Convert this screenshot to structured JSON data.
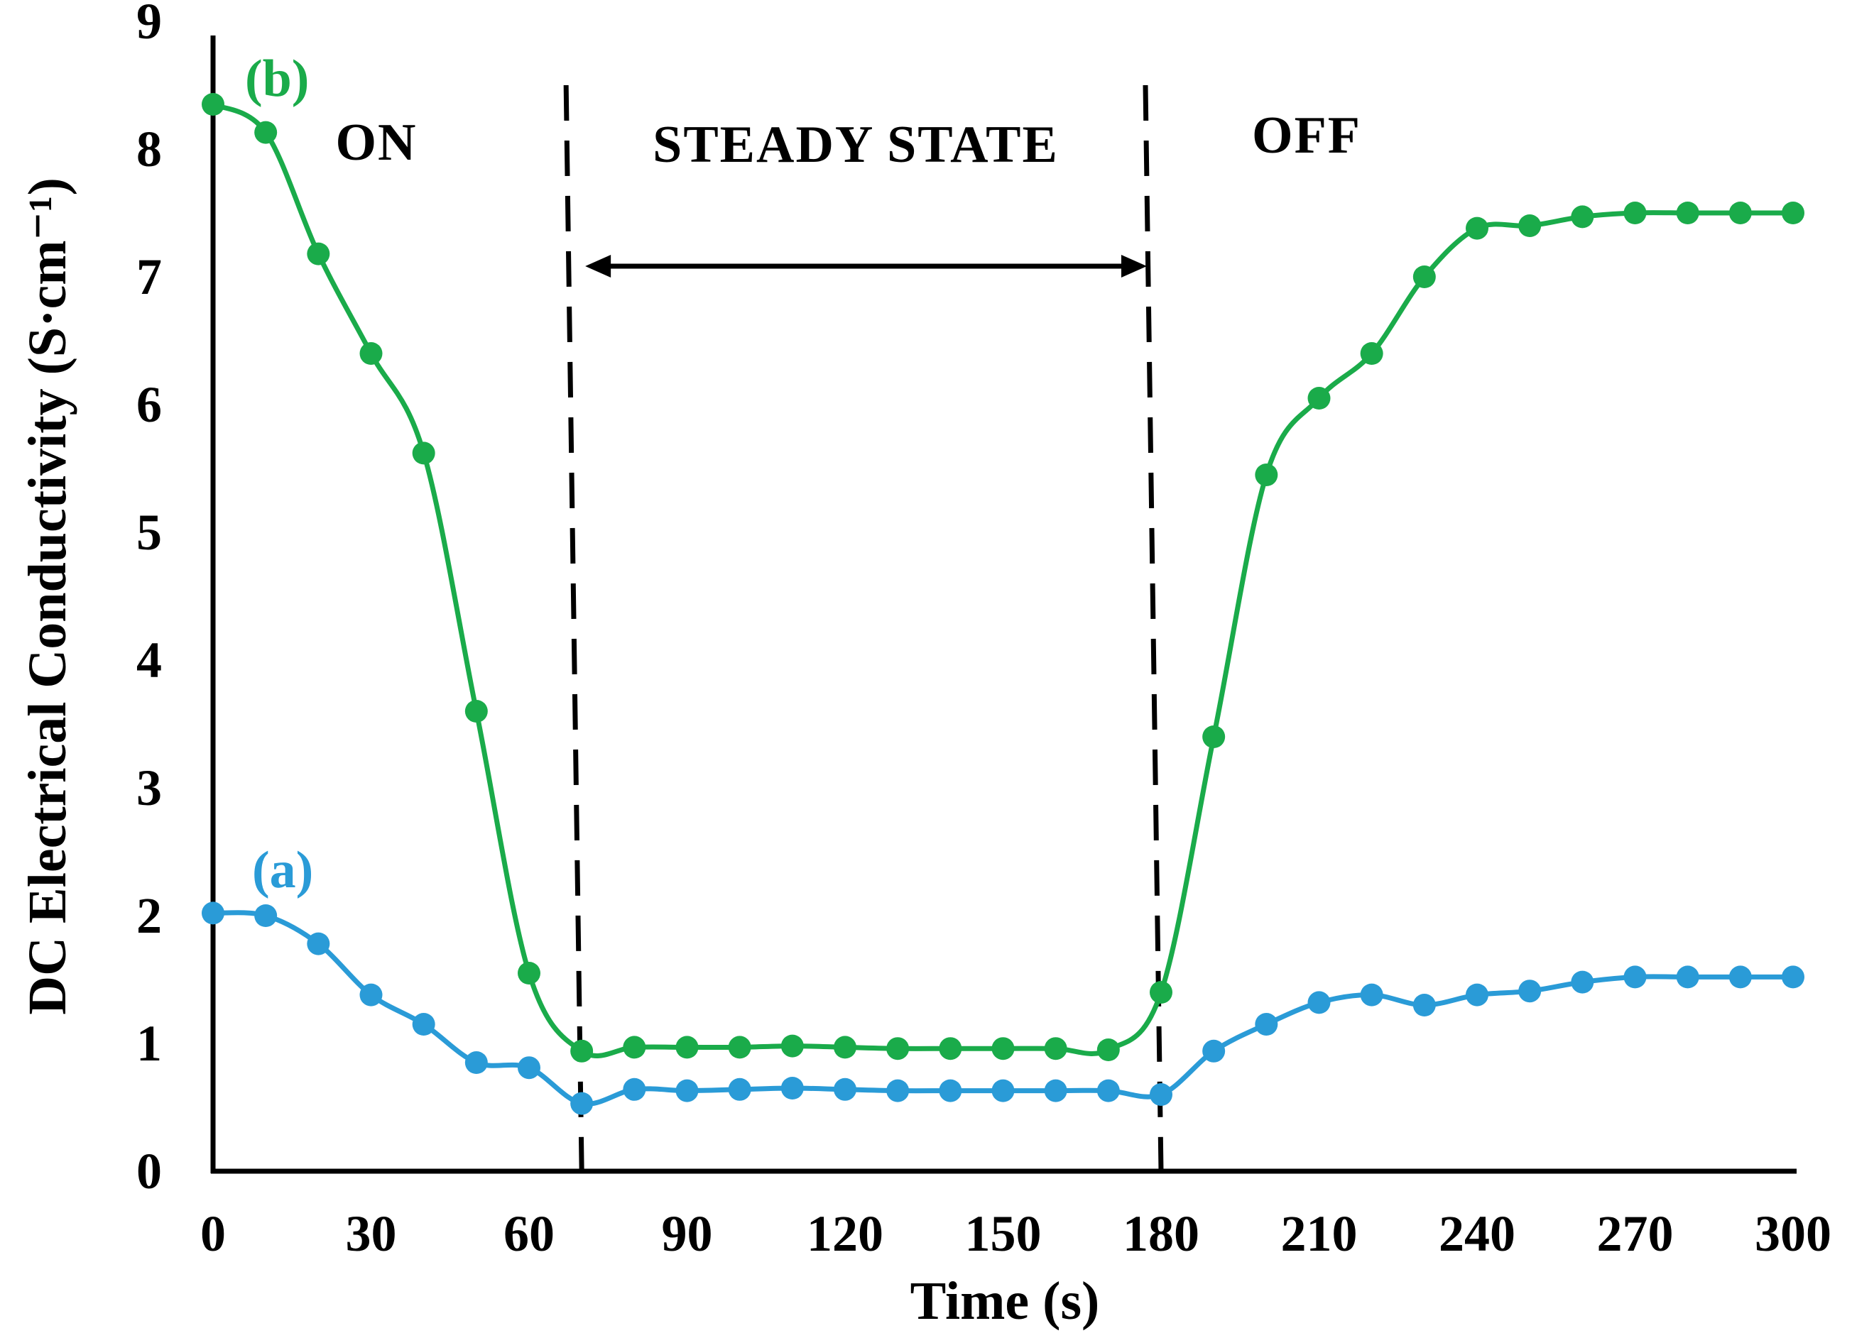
{
  "chart_data": {
    "type": "line",
    "title": "",
    "xlabel": "Time (s)",
    "ylabel": "DC Electrical Conductivity (S·cm⁻¹)",
    "xlim": [
      0,
      300
    ],
    "ylim": [
      0,
      9
    ],
    "x_ticks": [
      0,
      30,
      60,
      90,
      120,
      150,
      180,
      210,
      240,
      270,
      300
    ],
    "y_ticks": [
      0,
      1,
      2,
      3,
      4,
      5,
      6,
      7,
      8,
      9
    ],
    "grid": false,
    "x": [
      0,
      10,
      20,
      30,
      40,
      50,
      60,
      70,
      80,
      90,
      100,
      110,
      120,
      130,
      140,
      150,
      160,
      170,
      180,
      190,
      200,
      210,
      220,
      230,
      240,
      250,
      260,
      270,
      280,
      290,
      300
    ],
    "series": [
      {
        "name": "(b)",
        "color": "#1aab4a",
        "values": [
          8.35,
          8.13,
          7.18,
          6.4,
          5.62,
          3.6,
          1.55,
          0.94,
          0.97,
          0.97,
          0.97,
          0.98,
          0.97,
          0.96,
          0.96,
          0.96,
          0.96,
          0.95,
          1.4,
          3.4,
          5.45,
          6.05,
          6.4,
          7.0,
          7.38,
          7.4,
          7.47,
          7.5,
          7.5,
          7.5,
          7.5
        ]
      },
      {
        "name": "(a)",
        "color": "#2a9bd7",
        "values": [
          2.02,
          2.0,
          1.78,
          1.38,
          1.15,
          0.85,
          0.81,
          0.53,
          0.64,
          0.63,
          0.64,
          0.65,
          0.64,
          0.63,
          0.63,
          0.63,
          0.63,
          0.63,
          0.6,
          0.94,
          1.15,
          1.32,
          1.38,
          1.3,
          1.38,
          1.41,
          1.48,
          1.52,
          1.52,
          1.52,
          1.52
        ]
      }
    ],
    "annotations": {
      "regions": [
        {
          "label": "ON",
          "x_start": 0,
          "x_end": 70
        },
        {
          "label": "STEADY STATE",
          "x_start": 70,
          "x_end": 180
        },
        {
          "label": "OFF",
          "x_start": 180,
          "x_end": 300
        }
      ],
      "boundaries_x": [
        70,
        180
      ]
    }
  }
}
